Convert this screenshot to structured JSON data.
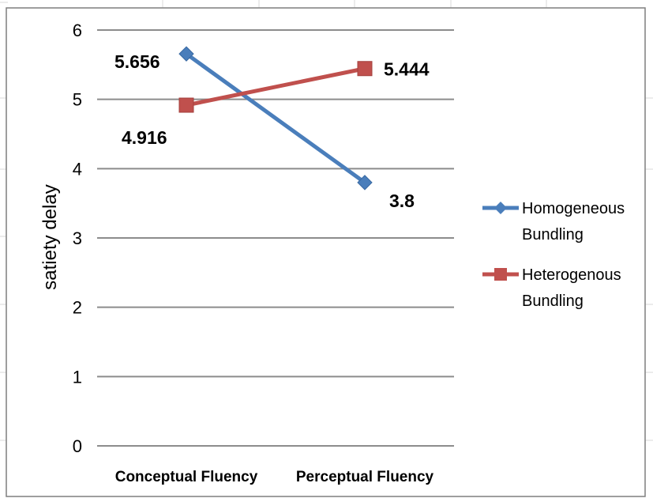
{
  "chart_data": {
    "type": "line",
    "title": "",
    "xlabel": "",
    "ylabel": "satiety delay",
    "ylim": [
      0,
      6
    ],
    "yticks": [
      0,
      1,
      2,
      3,
      4,
      5,
      6
    ],
    "categories": [
      "Conceptual Fluency",
      "Perceptual Fluency"
    ],
    "grid": true,
    "legend_position": "right",
    "series": [
      {
        "name_lines": [
          "Homogeneous",
          "Bundling"
        ],
        "color": "#4a7ebb",
        "marker": "diamond",
        "values": [
          5.656,
          3.8
        ],
        "value_labels": [
          "5.656",
          "3.8"
        ]
      },
      {
        "name_lines": [
          "Heterogenous",
          "Bundling"
        ],
        "color": "#c0504d",
        "marker": "square",
        "values": [
          4.916,
          5.444
        ],
        "value_labels": [
          "4.916",
          "5.444"
        ]
      }
    ]
  }
}
